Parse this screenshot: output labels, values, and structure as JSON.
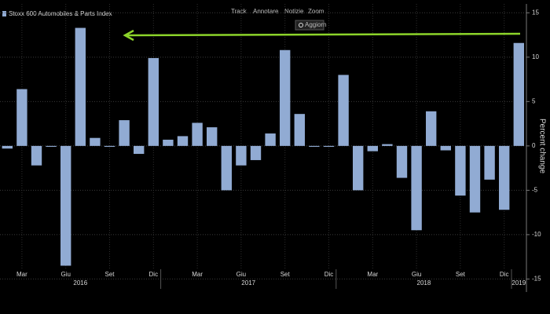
{
  "chart_data": {
    "type": "bar",
    "legend_label": "Stoxx 600 Automobiles & Parts Index",
    "y_label": "Percent change",
    "color": "#91abd3",
    "categories": [
      null,
      "Mar",
      null,
      null,
      "Giu",
      null,
      null,
      "Set",
      null,
      null,
      "Dic",
      null,
      null,
      "Mar",
      null,
      null,
      "Giu",
      null,
      null,
      "Set",
      null,
      null,
      "Dic",
      null,
      null,
      "Mar",
      null,
      null,
      "Giu",
      null,
      null,
      "Set",
      null,
      null,
      "Dic",
      null
    ],
    "category_groups": [
      {
        "label": "2016",
        "count": 11
      },
      {
        "label": "2017",
        "count": 12
      },
      {
        "label": "2018",
        "count": 12
      },
      {
        "label": "2019",
        "count": 1
      }
    ],
    "values": [
      -0.3,
      6.4,
      -2.2,
      -0.1,
      -13.5,
      13.3,
      0.9,
      -0.1,
      2.9,
      -0.9,
      9.9,
      0.7,
      1.1,
      2.6,
      2.1,
      -5.0,
      -2.2,
      -1.6,
      1.4,
      10.8,
      3.6,
      -0.1,
      -0.1,
      8.0,
      -5.0,
      -0.6,
      0.2,
      -3.6,
      -9.5,
      3.9,
      -0.5,
      -5.6,
      -7.5,
      -3.8,
      -7.2,
      11.6
    ],
    "ylim": [
      -16.2,
      16
    ],
    "yticks": [
      -15,
      -10,
      -5,
      0,
      5,
      10,
      15
    ],
    "grid": true
  },
  "ui": {
    "toolbar": [
      "Track",
      "Annotare",
      "Notizie",
      "Zoom"
    ],
    "button": "Aggiorn"
  }
}
